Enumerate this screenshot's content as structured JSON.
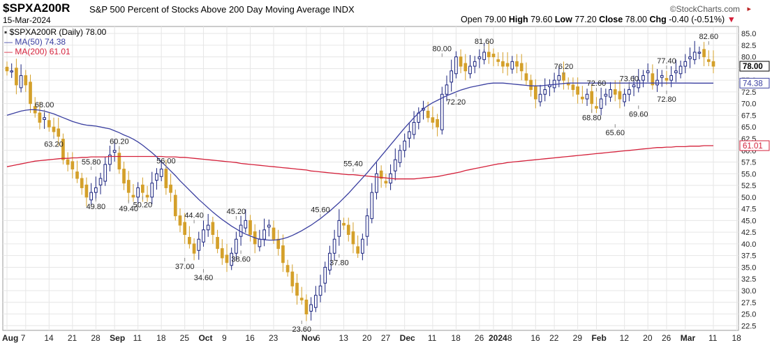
{
  "header": {
    "symbol": "$SPXA200R",
    "title": "S&P 500 Percent of Stocks Above 200 Day Moving Average INDX",
    "date": "15-Mar-2024",
    "brand": "©StockCharts.com",
    "open_label": "Open",
    "open": "79.00",
    "high_label": "High",
    "high": "79.60",
    "low_label": "Low",
    "low": "77.20",
    "close_label": "Close",
    "close": "78.00",
    "chg_label": "Chg",
    "chg": "-0.40 (-0.51%)",
    "chg_arrow": "▼"
  },
  "legend": {
    "price": "$SPXA200R (Daily) 78.00",
    "ma50": "MA(50) 74.38",
    "ma200": "MA(200) 61.01"
  },
  "colors": {
    "up": "#1a237e",
    "down": "#d4a02a",
    "ma50": "#3a3fa0",
    "ma200": "#d4203a",
    "grid": "#e6e6e6",
    "frame": "#999999"
  },
  "chart_data": {
    "type": "candlestick",
    "ylim": [
      21.5,
      86.5
    ],
    "y_ticks": [
      "85.0",
      "82.5",
      "80.0",
      "77.5",
      "75.0",
      "72.5",
      "70.0",
      "67.5",
      "65.0",
      "62.5",
      "60.0",
      "57.5",
      "55.0",
      "52.5",
      "50.0",
      "47.5",
      "45.0",
      "42.5",
      "40.0",
      "37.5",
      "35.0",
      "32.5",
      "30.0",
      "27.5",
      "25.0",
      "22.5"
    ],
    "x_ticks": [
      {
        "label": "Aug",
        "bold": true,
        "i": 0
      },
      {
        "label": "7",
        "i": 4
      },
      {
        "label": "14",
        "i": 9
      },
      {
        "label": "21",
        "i": 14
      },
      {
        "label": "28",
        "i": 19
      },
      {
        "label": "Sep",
        "bold": true,
        "i": 23
      },
      {
        "label": "11",
        "i": 28
      },
      {
        "label": "18",
        "i": 33
      },
      {
        "label": "25",
        "i": 38
      },
      {
        "label": "Oct",
        "bold": true,
        "i": 42
      },
      {
        "label": "9",
        "i": 47
      },
      {
        "label": "16",
        "i": 52
      },
      {
        "label": "23",
        "i": 57
      },
      {
        "label": "Nov",
        "bold": true,
        "i": 64
      },
      {
        "label": "6",
        "i": 67
      },
      {
        "label": "13",
        "i": 72
      },
      {
        "label": "20",
        "i": 77
      },
      {
        "label": "27",
        "i": 81
      },
      {
        "label": "Dec",
        "bold": true,
        "i": 85
      },
      {
        "label": "11",
        "i": 91
      },
      {
        "label": "18",
        "i": 96
      },
      {
        "label": "26",
        "i": 101
      },
      {
        "label": "2024",
        "bold": true,
        "i": 104
      },
      {
        "label": "8",
        "i": 108
      },
      {
        "label": "16",
        "i": 113
      },
      {
        "label": "22",
        "i": 117
      },
      {
        "label": "29",
        "i": 122
      },
      {
        "label": "Feb",
        "bold": true,
        "i": 126
      },
      {
        "label": "12",
        "i": 132
      },
      {
        "label": "20",
        "i": 137
      },
      {
        "label": "26",
        "i": 141
      },
      {
        "label": "Mar",
        "bold": true,
        "i": 145
      },
      {
        "label": "11",
        "i": 151
      },
      {
        "label": "18",
        "i": 156
      }
    ],
    "close": [
      77,
      77,
      74,
      76,
      74,
      70,
      68,
      66,
      67,
      65,
      64,
      63,
      58,
      57,
      56,
      54,
      52,
      50,
      51,
      52,
      54,
      57,
      59,
      60,
      56,
      53,
      51,
      50,
      52,
      51,
      50,
      53,
      55,
      56,
      52,
      51,
      46,
      44,
      42,
      40,
      38,
      41,
      43,
      44,
      42,
      39,
      37,
      36,
      38,
      41,
      44,
      45,
      42,
      40,
      41,
      43,
      44,
      41,
      39,
      36,
      34,
      31,
      29,
      28,
      25,
      27,
      29,
      31,
      35,
      38,
      41,
      45,
      44,
      42,
      40,
      38,
      41,
      46,
      51,
      55,
      54,
      53,
      55,
      58,
      60,
      62,
      64,
      66,
      68,
      69,
      67,
      66,
      65,
      72,
      74,
      77,
      80,
      78,
      77,
      78,
      79,
      80,
      81,
      80,
      80,
      79,
      78,
      78,
      79,
      78,
      77,
      75,
      73,
      71,
      72,
      73,
      74,
      75,
      76,
      75,
      74,
      73,
      72,
      71,
      72,
      70,
      69,
      71,
      72,
      73,
      72,
      71,
      72,
      73,
      74,
      75,
      76,
      77,
      74,
      75,
      76,
      75,
      76,
      77,
      78,
      79,
      80,
      81,
      81,
      80,
      79,
      78
    ],
    "ma50": [
      67.5,
      67.8,
      68.1,
      68.4,
      68.6,
      68.7,
      68.7,
      68.6,
      68.4,
      68.1,
      67.8,
      67.4,
      67.0,
      66.6,
      66.2,
      65.9,
      65.6,
      65.4,
      65.3,
      65.2,
      65.0,
      64.8,
      64.6,
      64.2,
      63.8,
      63.3,
      62.9,
      62.4,
      61.8,
      61.1,
      60.3,
      59.5,
      58.6,
      57.6,
      56.6,
      55.6,
      54.6,
      53.5,
      52.5,
      51.5,
      50.5,
      49.5,
      48.6,
      47.7,
      46.8,
      46.0,
      45.2,
      44.5,
      43.8,
      43.2,
      42.6,
      42.1,
      41.7,
      41.3,
      41.0,
      40.9,
      40.8,
      40.8,
      40.9,
      41.1,
      41.4,
      41.8,
      42.3,
      42.8,
      43.4,
      44.0,
      44.7,
      45.4,
      46.2,
      47.0,
      47.9,
      48.8,
      49.8,
      50.8,
      51.9,
      53.0,
      54.1,
      55.2,
      56.4,
      57.6,
      58.8,
      60.0,
      61.2,
      62.4,
      63.6,
      64.8,
      65.9,
      67.0,
      68.0,
      68.9,
      69.6,
      70.2,
      70.7,
      71.2,
      71.7,
      72.1,
      72.5,
      72.9,
      73.2,
      73.5,
      73.7,
      73.9,
      74.1,
      74.3,
      74.4,
      74.4,
      74.4,
      74.3,
      74.2,
      74.1,
      74.0,
      73.9,
      73.8,
      73.8,
      73.8,
      73.9,
      74.0,
      74.1,
      74.2,
      74.3,
      74.4,
      74.4,
      74.4,
      74.4,
      74.4,
      74.4,
      74.4,
      74.4,
      74.4,
      74.4,
      74.4,
      74.4,
      74.4,
      74.4,
      74.4,
      74.4,
      74.4,
      74.4,
      74.4,
      74.4,
      74.4,
      74.4,
      74.4,
      74.4,
      74.4,
      74.4,
      74.4,
      74.38,
      74.38,
      74.38,
      74.38,
      74.38
    ],
    "ma200": [
      56.5,
      56.7,
      56.9,
      57.1,
      57.3,
      57.5,
      57.7,
      57.8,
      57.9,
      58.0,
      58.1,
      58.2,
      58.3,
      58.3,
      58.4,
      58.4,
      58.5,
      58.5,
      58.6,
      58.6,
      58.6,
      58.6,
      58.7,
      58.7,
      58.7,
      58.7,
      58.7,
      58.7,
      58.7,
      58.7,
      58.7,
      58.7,
      58.7,
      58.7,
      58.6,
      58.6,
      58.6,
      58.5,
      58.5,
      58.4,
      58.3,
      58.2,
      58.1,
      58.0,
      57.9,
      57.8,
      57.7,
      57.6,
      57.5,
      57.4,
      57.2,
      57.1,
      57.0,
      56.9,
      56.8,
      56.7,
      56.6,
      56.5,
      56.4,
      56.3,
      56.2,
      56.1,
      56.0,
      55.9,
      55.8,
      55.6,
      55.5,
      55.4,
      55.3,
      55.2,
      55.1,
      55.0,
      54.9,
      54.8,
      54.8,
      54.7,
      54.6,
      54.5,
      54.4,
      54.3,
      54.2,
      54.1,
      54.0,
      53.9,
      53.9,
      53.9,
      53.9,
      53.9,
      54.0,
      54.1,
      54.2,
      54.3,
      54.4,
      54.6,
      54.8,
      55.0,
      55.2,
      55.4,
      55.7,
      55.9,
      56.1,
      56.3,
      56.5,
      56.7,
      56.9,
      57.1,
      57.2,
      57.4,
      57.5,
      57.6,
      57.7,
      57.8,
      57.9,
      58.0,
      58.1,
      58.2,
      58.3,
      58.4,
      58.5,
      58.6,
      58.7,
      58.8,
      58.9,
      59.0,
      59.1,
      59.2,
      59.3,
      59.4,
      59.5,
      59.6,
      59.7,
      59.8,
      59.9,
      60.0,
      60.1,
      60.2,
      60.3,
      60.4,
      60.5,
      60.6,
      60.6,
      60.7,
      60.7,
      60.8,
      60.8,
      60.8,
      60.9,
      60.9,
      60.9,
      61.0,
      61.0,
      61.01
    ],
    "annotations": [
      {
        "label": "68.00",
        "value": 68.0,
        "i": 8,
        "pos": "above"
      },
      {
        "label": "63.20",
        "value": 63.2,
        "i": 10,
        "pos": "below"
      },
      {
        "label": "55.80",
        "value": 55.8,
        "i": 18,
        "pos": "above"
      },
      {
        "label": "60.20",
        "value": 60.2,
        "i": 24,
        "pos": "above"
      },
      {
        "label": "49.80",
        "value": 49.8,
        "i": 19,
        "pos": "below"
      },
      {
        "label": "49.40",
        "value": 49.4,
        "i": 26,
        "pos": "below"
      },
      {
        "label": "50.20",
        "value": 50.2,
        "i": 29,
        "pos": "below"
      },
      {
        "label": "56.00",
        "value": 56.0,
        "i": 34,
        "pos": "above"
      },
      {
        "label": "44.40",
        "value": 44.4,
        "i": 40,
        "pos": "above"
      },
      {
        "label": "37.00",
        "value": 37.0,
        "i": 38,
        "pos": "below"
      },
      {
        "label": "45.20",
        "value": 45.2,
        "i": 49,
        "pos": "above"
      },
      {
        "label": "34.60",
        "value": 34.6,
        "i": 42,
        "pos": "below"
      },
      {
        "label": "38.60",
        "value": 38.6,
        "i": 50,
        "pos": "below"
      },
      {
        "label": "23.60",
        "value": 23.6,
        "i": 63,
        "pos": "below"
      },
      {
        "label": "45.60",
        "value": 45.6,
        "i": 67,
        "pos": "above"
      },
      {
        "label": "37.80",
        "value": 37.8,
        "i": 71,
        "pos": "below"
      },
      {
        "label": "55.40",
        "value": 55.4,
        "i": 74,
        "pos": "above"
      },
      {
        "label": "80.00",
        "value": 80.0,
        "i": 93,
        "pos": "above"
      },
      {
        "label": "72.20",
        "value": 72.2,
        "i": 96,
        "pos": "below"
      },
      {
        "label": "81.60",
        "value": 81.6,
        "i": 102,
        "pos": "above"
      },
      {
        "label": "76.20",
        "value": 76.2,
        "i": 119,
        "pos": "above"
      },
      {
        "label": "72.60",
        "value": 72.6,
        "i": 126,
        "pos": "above"
      },
      {
        "label": "68.80",
        "value": 68.8,
        "i": 125,
        "pos": "below"
      },
      {
        "label": "73.60",
        "value": 73.6,
        "i": 133,
        "pos": "above"
      },
      {
        "label": "65.60",
        "value": 65.6,
        "i": 130,
        "pos": "below"
      },
      {
        "label": "69.60",
        "value": 69.6,
        "i": 135,
        "pos": "below"
      },
      {
        "label": "77.40",
        "value": 77.4,
        "i": 141,
        "pos": "above"
      },
      {
        "label": "72.80",
        "value": 72.8,
        "i": 141,
        "pos": "below"
      },
      {
        "label": "82.60",
        "value": 82.6,
        "i": 150,
        "pos": "above"
      }
    ],
    "last_price_label": "78.00",
    "last_ma50_label": "74.38",
    "last_ma200_label": "61.01"
  }
}
